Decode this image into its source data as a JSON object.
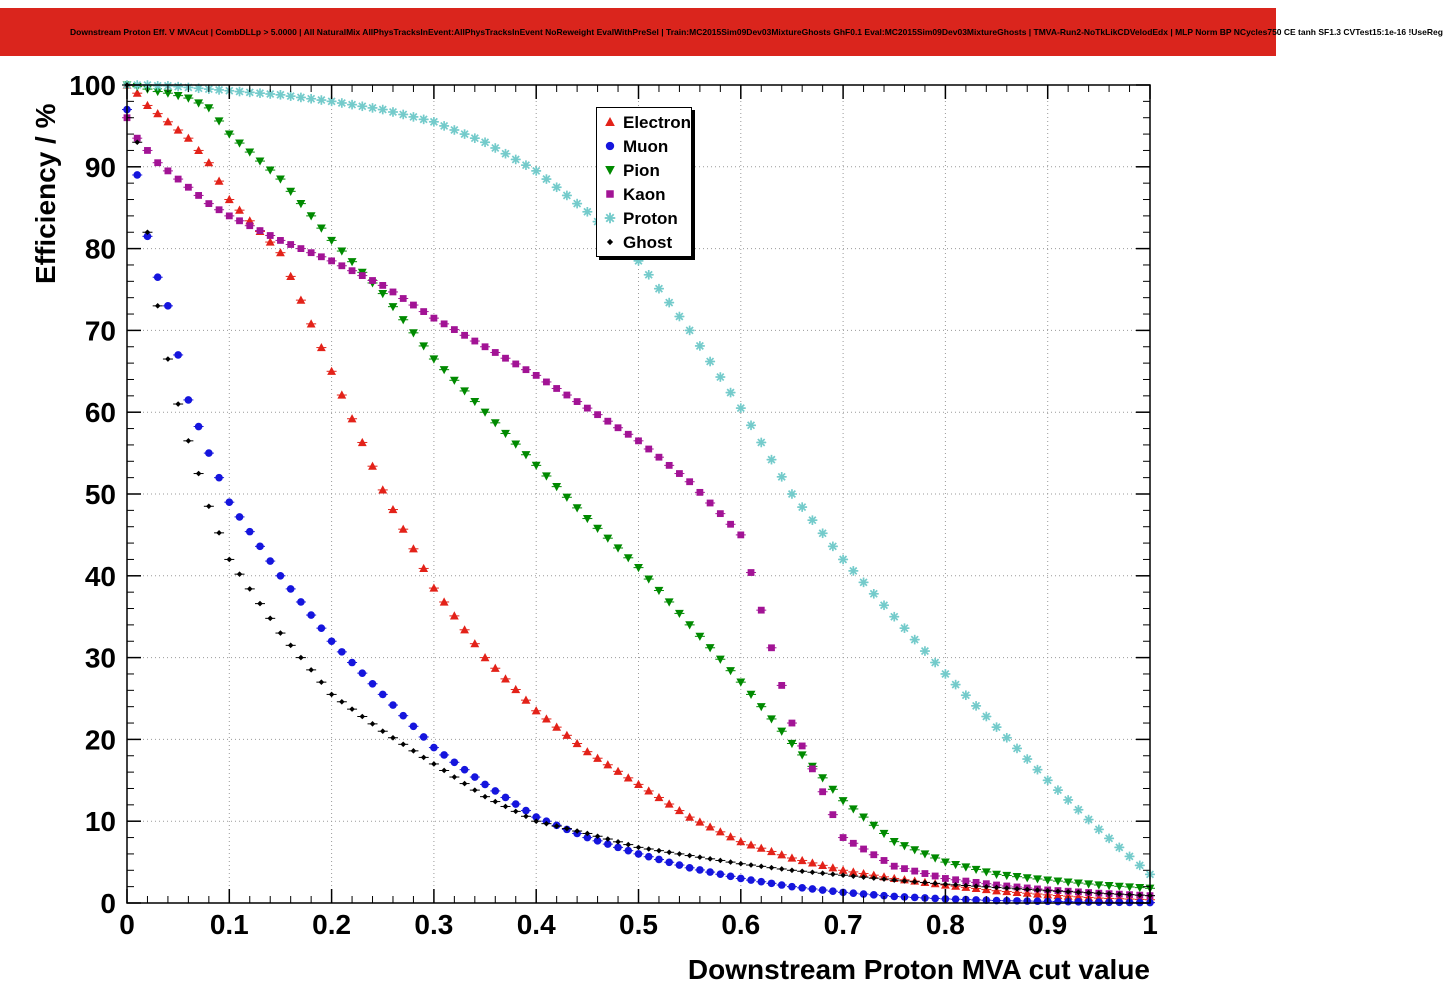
{
  "title_bar": {
    "text": "Downstream Proton Eff. V MVAcut | CombDLLp > 5.0000 | All NaturalMix AllPhysTracksInEvent:AllPhysTracksInEvent NoReweight EvalWithPreSel | Train:MC2015Sim09Dev03MixtureGhosts GhF0.1 Eval:MC2015Sim09Dev03MixtureGhosts | TMVA-Run2-NoTkLikCDVelodEdx | MLP Norm BP NCycles750 CE tanh SF1.3 CVTest15:1e-16 !UseReg",
    "background": "#da251d",
    "text_color": "#000000"
  },
  "chart_data": {
    "type": "scatter",
    "title": "",
    "xlabel": "Downstream Proton MVA cut value",
    "ylabel": "Efficiency / %",
    "xlim": [
      0,
      1
    ],
    "ylim": [
      0,
      100
    ],
    "grid": "dotted",
    "legend_position": "top-center",
    "x_ticks": [
      0,
      0.1,
      0.2,
      0.3,
      0.4,
      0.5,
      0.6,
      0.7,
      0.8,
      0.9,
      1
    ],
    "x_tick_labels": [
      "0",
      "0.1",
      "0.2",
      "0.3",
      "0.4",
      "0.5",
      "0.6",
      "0.7",
      "0.8",
      "0.9",
      "1"
    ],
    "y_ticks": [
      0,
      10,
      20,
      30,
      40,
      50,
      60,
      70,
      80,
      90,
      100
    ],
    "y_tick_labels": [
      "0",
      "10",
      "20",
      "30",
      "40",
      "50",
      "60",
      "70",
      "80",
      "90",
      "100"
    ],
    "x": [
      0,
      0.01,
      0.02,
      0.03,
      0.04,
      0.05,
      0.06,
      0.08,
      0.1,
      0.15,
      0.2,
      0.25,
      0.3,
      0.35,
      0.4,
      0.45,
      0.5,
      0.55,
      0.6,
      0.65,
      0.7,
      0.75,
      0.8,
      0.85,
      0.9,
      0.95,
      1.0
    ],
    "series": [
      {
        "name": "Electron",
        "marker": "triangle-up",
        "color": "#e32219",
        "values": [
          100,
          99,
          97.5,
          96.5,
          95.5,
          94.5,
          93.5,
          90.5,
          86,
          79.5,
          65,
          50.5,
          38.5,
          30,
          23.5,
          18.5,
          14.5,
          10.5,
          7.5,
          5.5,
          4,
          3,
          2.2,
          1.5,
          1,
          0.6,
          0.4
        ]
      },
      {
        "name": "Muon",
        "marker": "circle",
        "color": "#1515dd",
        "values": [
          97,
          89,
          81.5,
          76.5,
          73,
          67,
          61.5,
          55,
          49,
          40,
          32,
          25.5,
          19,
          14.5,
          10.5,
          8,
          6,
          4.3,
          3,
          2,
          1.3,
          0.8,
          0.5,
          0.3,
          0.2,
          0.1,
          0.05
        ]
      },
      {
        "name": "Pion",
        "marker": "triangle-down",
        "color": "#008a00",
        "values": [
          100,
          99.8,
          99.5,
          99.2,
          99,
          98.7,
          98.4,
          97.2,
          94,
          88.5,
          81,
          74.5,
          66.5,
          60,
          53.5,
          47,
          41,
          34,
          27,
          19.5,
          12.5,
          7.5,
          5,
          3.5,
          2.8,
          2.2,
          1.8
        ]
      },
      {
        "name": "Kaon",
        "marker": "square",
        "color": "#a21395",
        "values": [
          96,
          93.5,
          92,
          90.5,
          89.5,
          88.5,
          87.5,
          85.5,
          84,
          81,
          78.5,
          75.5,
          71.5,
          68,
          64.5,
          60.5,
          56.5,
          51.5,
          45,
          22,
          8,
          4.5,
          3,
          2.2,
          1.6,
          1.2,
          0.9
        ]
      },
      {
        "name": "Proton",
        "marker": "star",
        "color": "#74cbcb",
        "values": [
          100,
          100,
          100,
          99.9,
          99.9,
          99.8,
          99.7,
          99.5,
          99.3,
          98.8,
          98,
          97,
          95.5,
          93,
          89.5,
          84.5,
          78.5,
          70,
          60.5,
          50,
          42,
          35,
          28,
          21.5,
          15,
          9,
          3.5
        ]
      },
      {
        "name": "Ghost",
        "marker": "diamond",
        "color": "#000000",
        "values": [
          100,
          93,
          82,
          73,
          66.5,
          61,
          56.5,
          48.5,
          42,
          33,
          25.5,
          21,
          17,
          13,
          10,
          8.5,
          6.8,
          5.8,
          4.8,
          4,
          3.4,
          2.8,
          2.3,
          1.9,
          1.5,
          1.2,
          0.9
        ]
      }
    ]
  }
}
